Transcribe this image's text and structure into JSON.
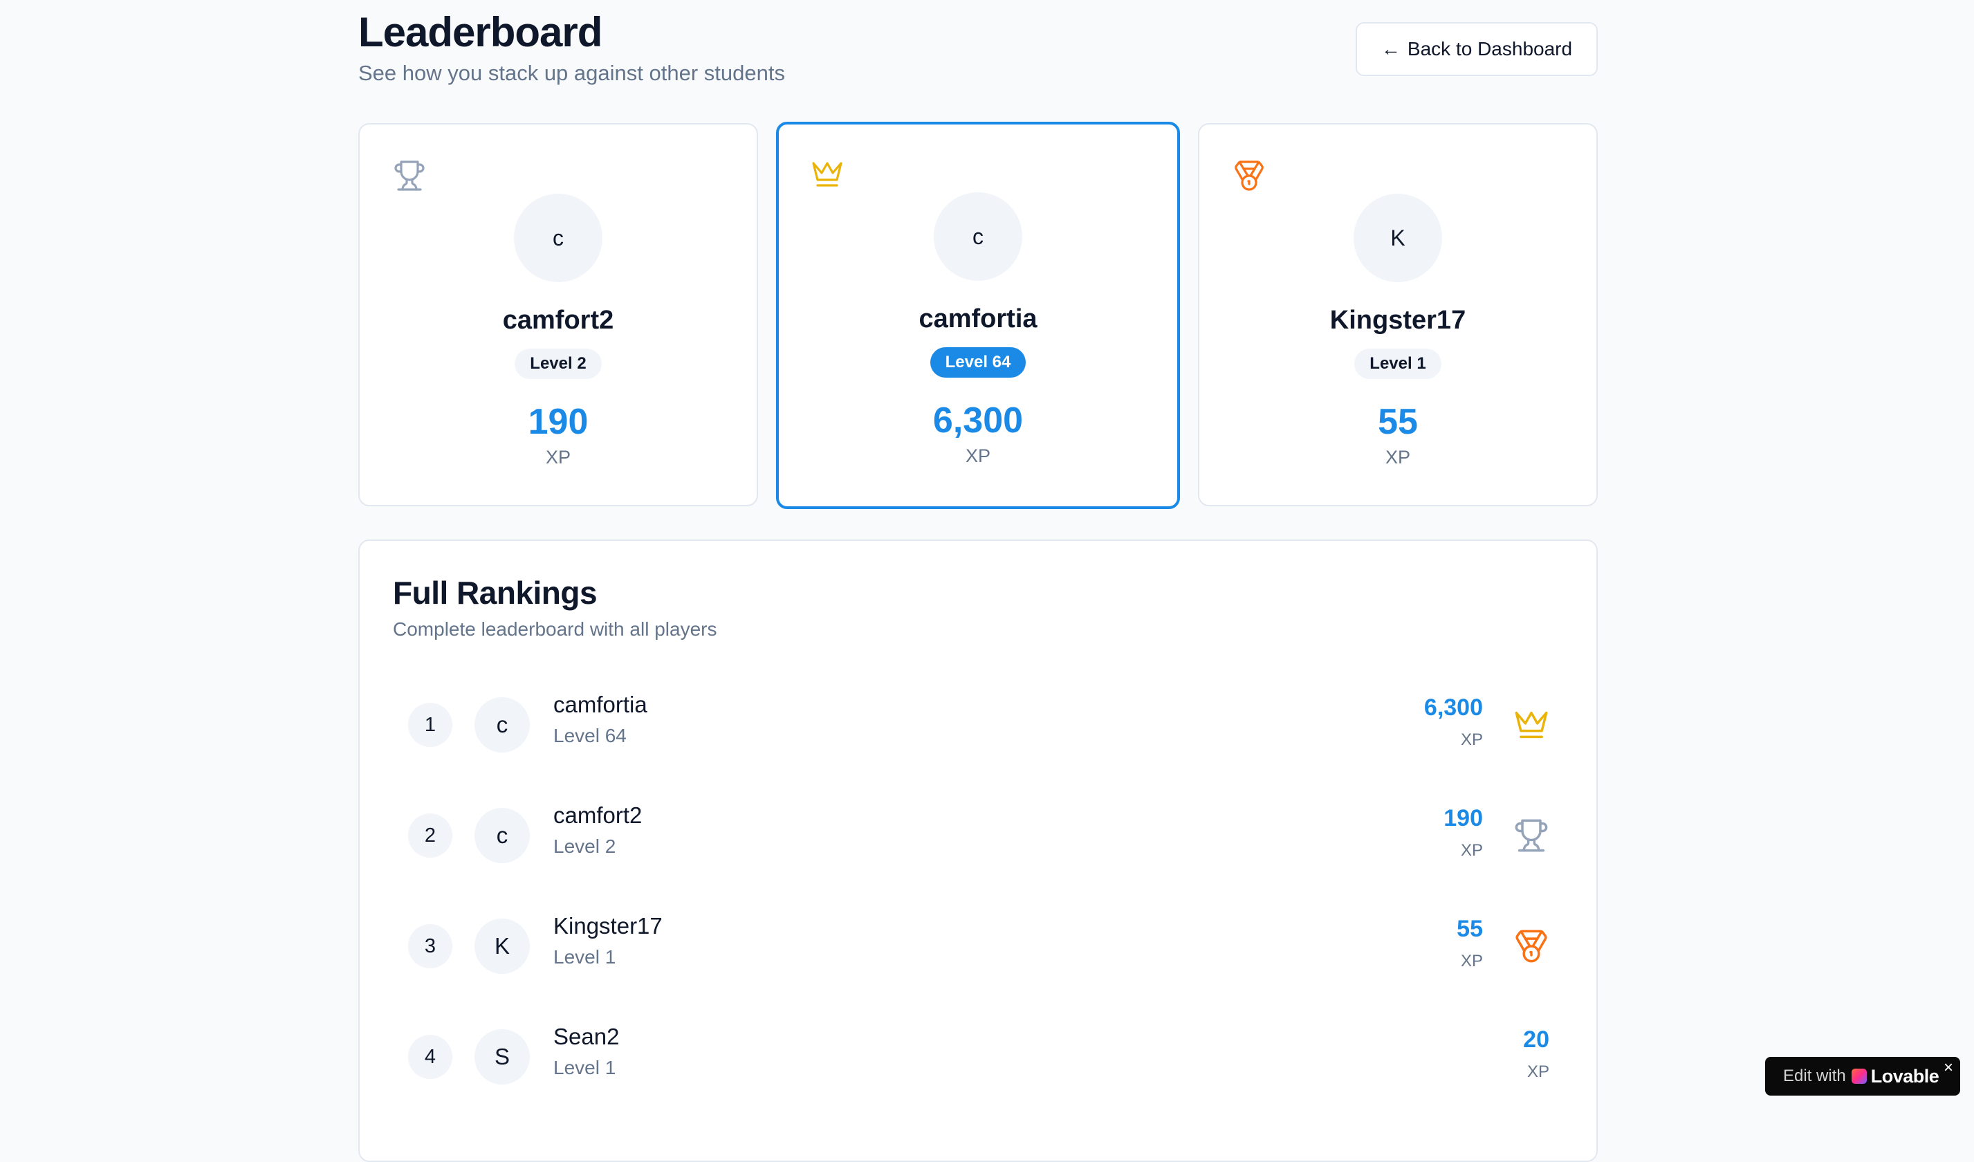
{
  "header": {
    "title": "Leaderboard",
    "subtitle": "See how you stack up against other students",
    "back_label": "Back to Dashboard"
  },
  "podium": [
    {
      "initial": "c",
      "name": "camfort2",
      "level": "Level 2",
      "xp": "190",
      "xp_label": "XP",
      "icon": "trophy-icon"
    },
    {
      "initial": "c",
      "name": "camfortia",
      "level": "Level 64",
      "xp": "6,300",
      "xp_label": "XP",
      "icon": "crown-icon"
    },
    {
      "initial": "K",
      "name": "Kingster17",
      "level": "Level 1",
      "xp": "55",
      "xp_label": "XP",
      "icon": "medal-icon"
    }
  ],
  "rankings": {
    "title": "Full Rankings",
    "subtitle": "Complete leaderboard with all players",
    "rows": [
      {
        "rank": "1",
        "initial": "c",
        "name": "camfortia",
        "level": "Level 64",
        "xp": "6,300",
        "xp_label": "XP",
        "icon": "crown-icon"
      },
      {
        "rank": "2",
        "initial": "c",
        "name": "camfort2",
        "level": "Level 2",
        "xp": "190",
        "xp_label": "XP",
        "icon": "trophy-icon"
      },
      {
        "rank": "3",
        "initial": "K",
        "name": "Kingster17",
        "level": "Level 1",
        "xp": "55",
        "xp_label": "XP",
        "icon": "medal-icon"
      },
      {
        "rank": "4",
        "initial": "S",
        "name": "Sean2",
        "level": "Level 1",
        "xp": "20",
        "xp_label": "XP",
        "icon": ""
      }
    ]
  },
  "badge": {
    "edit": "Edit with",
    "brand": "Lovable",
    "close": "×"
  },
  "colors": {
    "accent": "#1a8ae6",
    "gold": "#eab308",
    "silver": "#94a3b8",
    "bronze": "#f97316"
  }
}
